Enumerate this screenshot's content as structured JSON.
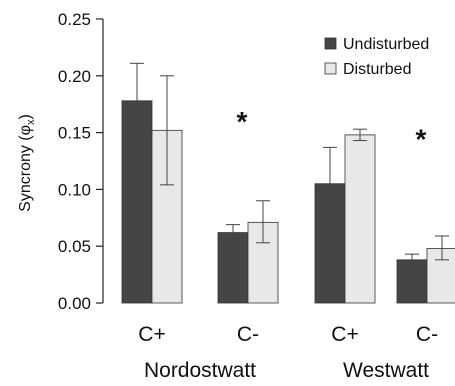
{
  "chart_data": {
    "type": "bar",
    "ylabel": "Syncrony (φ",
    "ylabel_sub": "x",
    "ylabel_close": ")",
    "ylim": [
      0,
      0.25
    ],
    "yticks": [
      "0.00",
      "0.05",
      "0.10",
      "0.15",
      "0.20",
      "0.25"
    ],
    "ytick_values": [
      0,
      0.05,
      0.1,
      0.15,
      0.2,
      0.25
    ],
    "grid": false,
    "legend_position": "top-right",
    "groups": [
      {
        "name": "Nordostwatt",
        "categories": [
          "C+",
          "C-"
        ]
      },
      {
        "name": "Westwatt",
        "categories": [
          "C+",
          "C-"
        ]
      }
    ],
    "series": [
      {
        "name": "Undisturbed",
        "color": "#454545",
        "values": [
          0.178,
          0.062,
          0.105,
          0.038
        ],
        "err_low": [
          0.147,
          0.056,
          0.073,
          0.033
        ],
        "err_high": [
          0.211,
          0.069,
          0.137,
          0.043
        ]
      },
      {
        "name": "Disturbed",
        "color": "#e8e8e8",
        "values": [
          0.152,
          0.071,
          0.148,
          0.048
        ],
        "err_low": [
          0.104,
          0.053,
          0.143,
          0.038
        ],
        "err_high": [
          0.2,
          0.09,
          0.153,
          0.059
        ]
      }
    ],
    "annotations": [
      {
        "text": "*",
        "group": 0,
        "category": 1,
        "y": 0.16
      },
      {
        "text": "*",
        "group": 1,
        "category": 1,
        "y": 0.145
      }
    ]
  }
}
